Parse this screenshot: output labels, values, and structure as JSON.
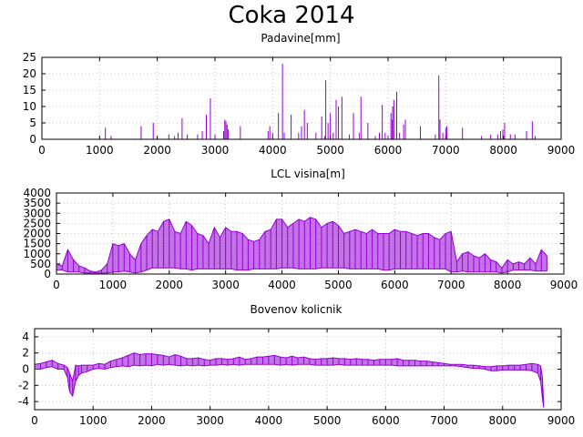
{
  "figure": {
    "title": "Coka 2014",
    "colors": {
      "series": "#9400d3",
      "grid": "#b8b8b8",
      "frame": "#000000"
    }
  },
  "chart_data": [
    {
      "type": "bar",
      "title": "Padavine[mm]",
      "xlabel": "",
      "ylabel": "",
      "xlim": [
        0,
        9000
      ],
      "ylim": [
        0,
        25
      ],
      "xticks": [
        0,
        1000,
        2000,
        3000,
        4000,
        5000,
        6000,
        7000,
        8000,
        9000
      ],
      "yticks": [
        0,
        5,
        10,
        15,
        20,
        25
      ],
      "grid": true,
      "series": [
        {
          "x": [
            1100,
            1200,
            1720,
            1930,
            2200,
            2300,
            2360,
            2430,
            2520,
            2700,
            2780,
            2850,
            2920,
            3000,
            3150,
            3170,
            3190,
            3210,
            3230,
            3440,
            3920,
            3950,
            4000,
            4100,
            4170,
            4200,
            4320,
            4450,
            4500,
            4550,
            4600,
            4750,
            4850,
            4900,
            4920,
            4960,
            5000,
            5050,
            5100,
            5140,
            5200,
            5330,
            5400,
            5500,
            5530,
            5650,
            5780,
            5850,
            5900,
            5950,
            6000,
            6050,
            6070,
            6080,
            6100,
            6150,
            6200,
            6270,
            6300,
            6560,
            6820,
            6880,
            6900,
            6950,
            7000,
            7020,
            7290,
            7620,
            7780,
            7900,
            7950,
            7990,
            8020,
            8120,
            8200,
            8400,
            8500,
            8550
          ],
          "y": [
            3.5,
            1,
            4,
            5,
            1.5,
            1,
            2,
            6.5,
            1.5,
            1.5,
            2.5,
            7.5,
            12.5,
            1.5,
            2.5,
            6,
            5.5,
            4.5,
            3,
            4,
            2.5,
            4,
            2,
            8,
            23,
            2,
            7.5,
            2,
            4,
            9,
            5,
            2,
            7,
            1,
            18,
            5,
            8,
            2,
            12,
            10,
            13,
            1.5,
            8,
            2,
            13,
            5,
            1,
            2,
            10.5,
            2,
            1,
            8,
            6,
            10,
            12,
            14.5,
            2,
            4.5,
            6,
            4,
            1.5,
            19.5,
            6,
            2,
            3.5,
            4,
            3.5,
            1,
            1.5,
            1.5,
            2.5,
            3,
            5,
            1.5,
            1.5,
            2.5,
            5.5,
            1
          ]
        }
      ]
    },
    {
      "type": "line",
      "title": "LCL visina[m]",
      "xlabel": "",
      "ylabel": "",
      "xlim": [
        0,
        9000
      ],
      "ylim": [
        0,
        4000
      ],
      "xticks": [
        0,
        1000,
        2000,
        3000,
        4000,
        5000,
        6000,
        7000,
        8000,
        9000
      ],
      "yticks": [
        0,
        500,
        1000,
        1500,
        2000,
        2500,
        3000,
        3500,
        4000
      ],
      "grid": true,
      "series": [
        {
          "x": [
            0,
            100,
            200,
            300,
            400,
            500,
            600,
            700,
            800,
            900,
            1000,
            1100,
            1200,
            1300,
            1400,
            1500,
            1600,
            1700,
            1800,
            1900,
            2000,
            2100,
            2200,
            2300,
            2400,
            2500,
            2600,
            2700,
            2800,
            2900,
            3000,
            3100,
            3200,
            3300,
            3400,
            3500,
            3600,
            3700,
            3800,
            3900,
            4000,
            4100,
            4200,
            4300,
            4400,
            4500,
            4600,
            4700,
            4800,
            4900,
            5000,
            5100,
            5200,
            5300,
            5400,
            5500,
            5600,
            5700,
            5800,
            5900,
            6000,
            6100,
            6200,
            6300,
            6400,
            6500,
            6600,
            6700,
            6800,
            6900,
            7000,
            7100,
            7200,
            7300,
            7400,
            7500,
            7600,
            7700,
            7800,
            7900,
            8000,
            8100,
            8200,
            8300,
            8400,
            8500,
            8600,
            8700
          ],
          "ymin": [
            200,
            200,
            100,
            100,
            100,
            50,
            50,
            50,
            50,
            50,
            100,
            100,
            150,
            100,
            50,
            100,
            200,
            300,
            300,
            300,
            300,
            300,
            250,
            250,
            200,
            250,
            250,
            250,
            250,
            250,
            250,
            250,
            200,
            200,
            200,
            250,
            250,
            250,
            250,
            250,
            300,
            300,
            300,
            250,
            250,
            250,
            250,
            300,
            300,
            300,
            300,
            300,
            250,
            250,
            250,
            250,
            250,
            250,
            200,
            200,
            250,
            250,
            250,
            250,
            250,
            250,
            250,
            250,
            250,
            250,
            100,
            100,
            150,
            100,
            100,
            100,
            100,
            100,
            100,
            50,
            100,
            200,
            200,
            200,
            200,
            150,
            150,
            150
          ],
          "ymax": [
            500,
            400,
            1200,
            700,
            400,
            300,
            150,
            100,
            200,
            500,
            1500,
            1400,
            1500,
            1000,
            700,
            1500,
            1900,
            2200,
            2100,
            2600,
            2700,
            2100,
            2000,
            2600,
            2400,
            2000,
            1900,
            1500,
            2300,
            1800,
            2300,
            2100,
            2100,
            2000,
            1700,
            1600,
            1700,
            2100,
            2200,
            2700,
            2700,
            2300,
            2500,
            2700,
            2600,
            2800,
            2700,
            2300,
            2500,
            2600,
            2400,
            2000,
            2100,
            2200,
            2100,
            2000,
            2200,
            2000,
            2000,
            2000,
            2200,
            2100,
            2100,
            2000,
            1900,
            2000,
            2000,
            1800,
            1700,
            2000,
            2100,
            600,
            1000,
            1100,
            900,
            800,
            1000,
            700,
            600,
            300,
            700,
            500,
            600,
            500,
            800,
            500,
            1200,
            900
          ]
        }
      ]
    },
    {
      "type": "line",
      "title": "Bovenov kolicnik",
      "xlabel": "",
      "ylabel": "",
      "xlim": [
        0,
        9000
      ],
      "ylim": [
        -5,
        5
      ],
      "xticks": [
        0,
        1000,
        2000,
        3000,
        4000,
        5000,
        6000,
        7000,
        8000,
        9000
      ],
      "yticks": [
        -4,
        -2,
        0,
        2,
        4
      ],
      "grid": true,
      "series": [
        {
          "x": [
            0,
            100,
            200,
            300,
            400,
            500,
            560,
            600,
            650,
            700,
            750,
            800,
            900,
            1000,
            1100,
            1200,
            1300,
            1400,
            1500,
            1600,
            1700,
            1800,
            1900,
            2000,
            2100,
            2200,
            2300,
            2400,
            2500,
            2600,
            2700,
            2800,
            2900,
            3000,
            3100,
            3200,
            3300,
            3400,
            3500,
            3600,
            3700,
            3800,
            3900,
            4000,
            4100,
            4200,
            4300,
            4400,
            4500,
            4600,
            4700,
            4800,
            4900,
            5000,
            5100,
            5200,
            5300,
            5400,
            5500,
            5600,
            5700,
            5800,
            5900,
            6000,
            6100,
            6200,
            6300,
            6400,
            6500,
            6600,
            6700,
            6800,
            6900,
            7000,
            7100,
            7200,
            7300,
            7400,
            7500,
            7600,
            7700,
            7800,
            7900,
            8000,
            8100,
            8200,
            8300,
            8400,
            8500,
            8600,
            8650,
            8680,
            8700
          ],
          "ymin": [
            0,
            0,
            0.2,
            0.3,
            0,
            0,
            -1,
            -2.8,
            -3.3,
            -1.5,
            -0.8,
            -0.5,
            -0.3,
            0,
            0.1,
            0,
            0.2,
            0.3,
            0.4,
            0.3,
            0.5,
            0.4,
            0.5,
            0.4,
            0.6,
            0.5,
            0.6,
            0.5,
            0.4,
            0.5,
            0.4,
            0.5,
            0.4,
            0.5,
            0.5,
            0.6,
            0.5,
            0.6,
            0.5,
            0.6,
            0.6,
            0.6,
            0.6,
            0.6,
            0.6,
            0.5,
            0.6,
            0.5,
            0.6,
            0.6,
            0.6,
            0.5,
            0.5,
            0.5,
            0.5,
            0.6,
            0.5,
            0.5,
            0.5,
            0.5,
            0.5,
            0.5,
            0.5,
            0.5,
            0.5,
            0.4,
            0.4,
            0.4,
            0.4,
            0.4,
            0.4,
            0.4,
            0.4,
            0.4,
            0.4,
            0.4,
            0.3,
            0.2,
            0.1,
            0.1,
            0,
            -0.2,
            -0.2,
            -0.1,
            -0.1,
            -0.1,
            -0.1,
            -0.1,
            -0.2,
            -0.5,
            -1.5,
            -3.5,
            -4.7
          ],
          "ymax": [
            0.6,
            0.7,
            0.9,
            1.1,
            0.7,
            0.5,
            0.2,
            -0.5,
            -1.5,
            0.5,
            0.4,
            0.5,
            0.5,
            0.5,
            0.7,
            0.6,
            1,
            1.2,
            1.4,
            1.7,
            2,
            1.8,
            1.9,
            1.9,
            1.8,
            1.7,
            1.5,
            1.8,
            1.6,
            1.3,
            1.3,
            1.4,
            1.2,
            1.1,
            1.3,
            1.3,
            1.2,
            1.3,
            1.5,
            1.2,
            1.3,
            1.5,
            1.5,
            1.6,
            1.7,
            1.5,
            1.4,
            1.6,
            1.4,
            1.5,
            1.3,
            1.2,
            1.3,
            1.3,
            1.4,
            1.3,
            1.3,
            1.2,
            1.3,
            1.2,
            1.2,
            1.1,
            1.2,
            1.2,
            1.2,
            1.3,
            1.1,
            1.1,
            1.1,
            1,
            1,
            0.9,
            0.8,
            0.7,
            0.6,
            0.6,
            0.6,
            0.5,
            0.5,
            0.4,
            0.3,
            0.3,
            0.4,
            0.4,
            0.5,
            0.5,
            0.5,
            0.6,
            0.7,
            0.6,
            0.4,
            -1,
            -4
          ]
        }
      ]
    }
  ]
}
